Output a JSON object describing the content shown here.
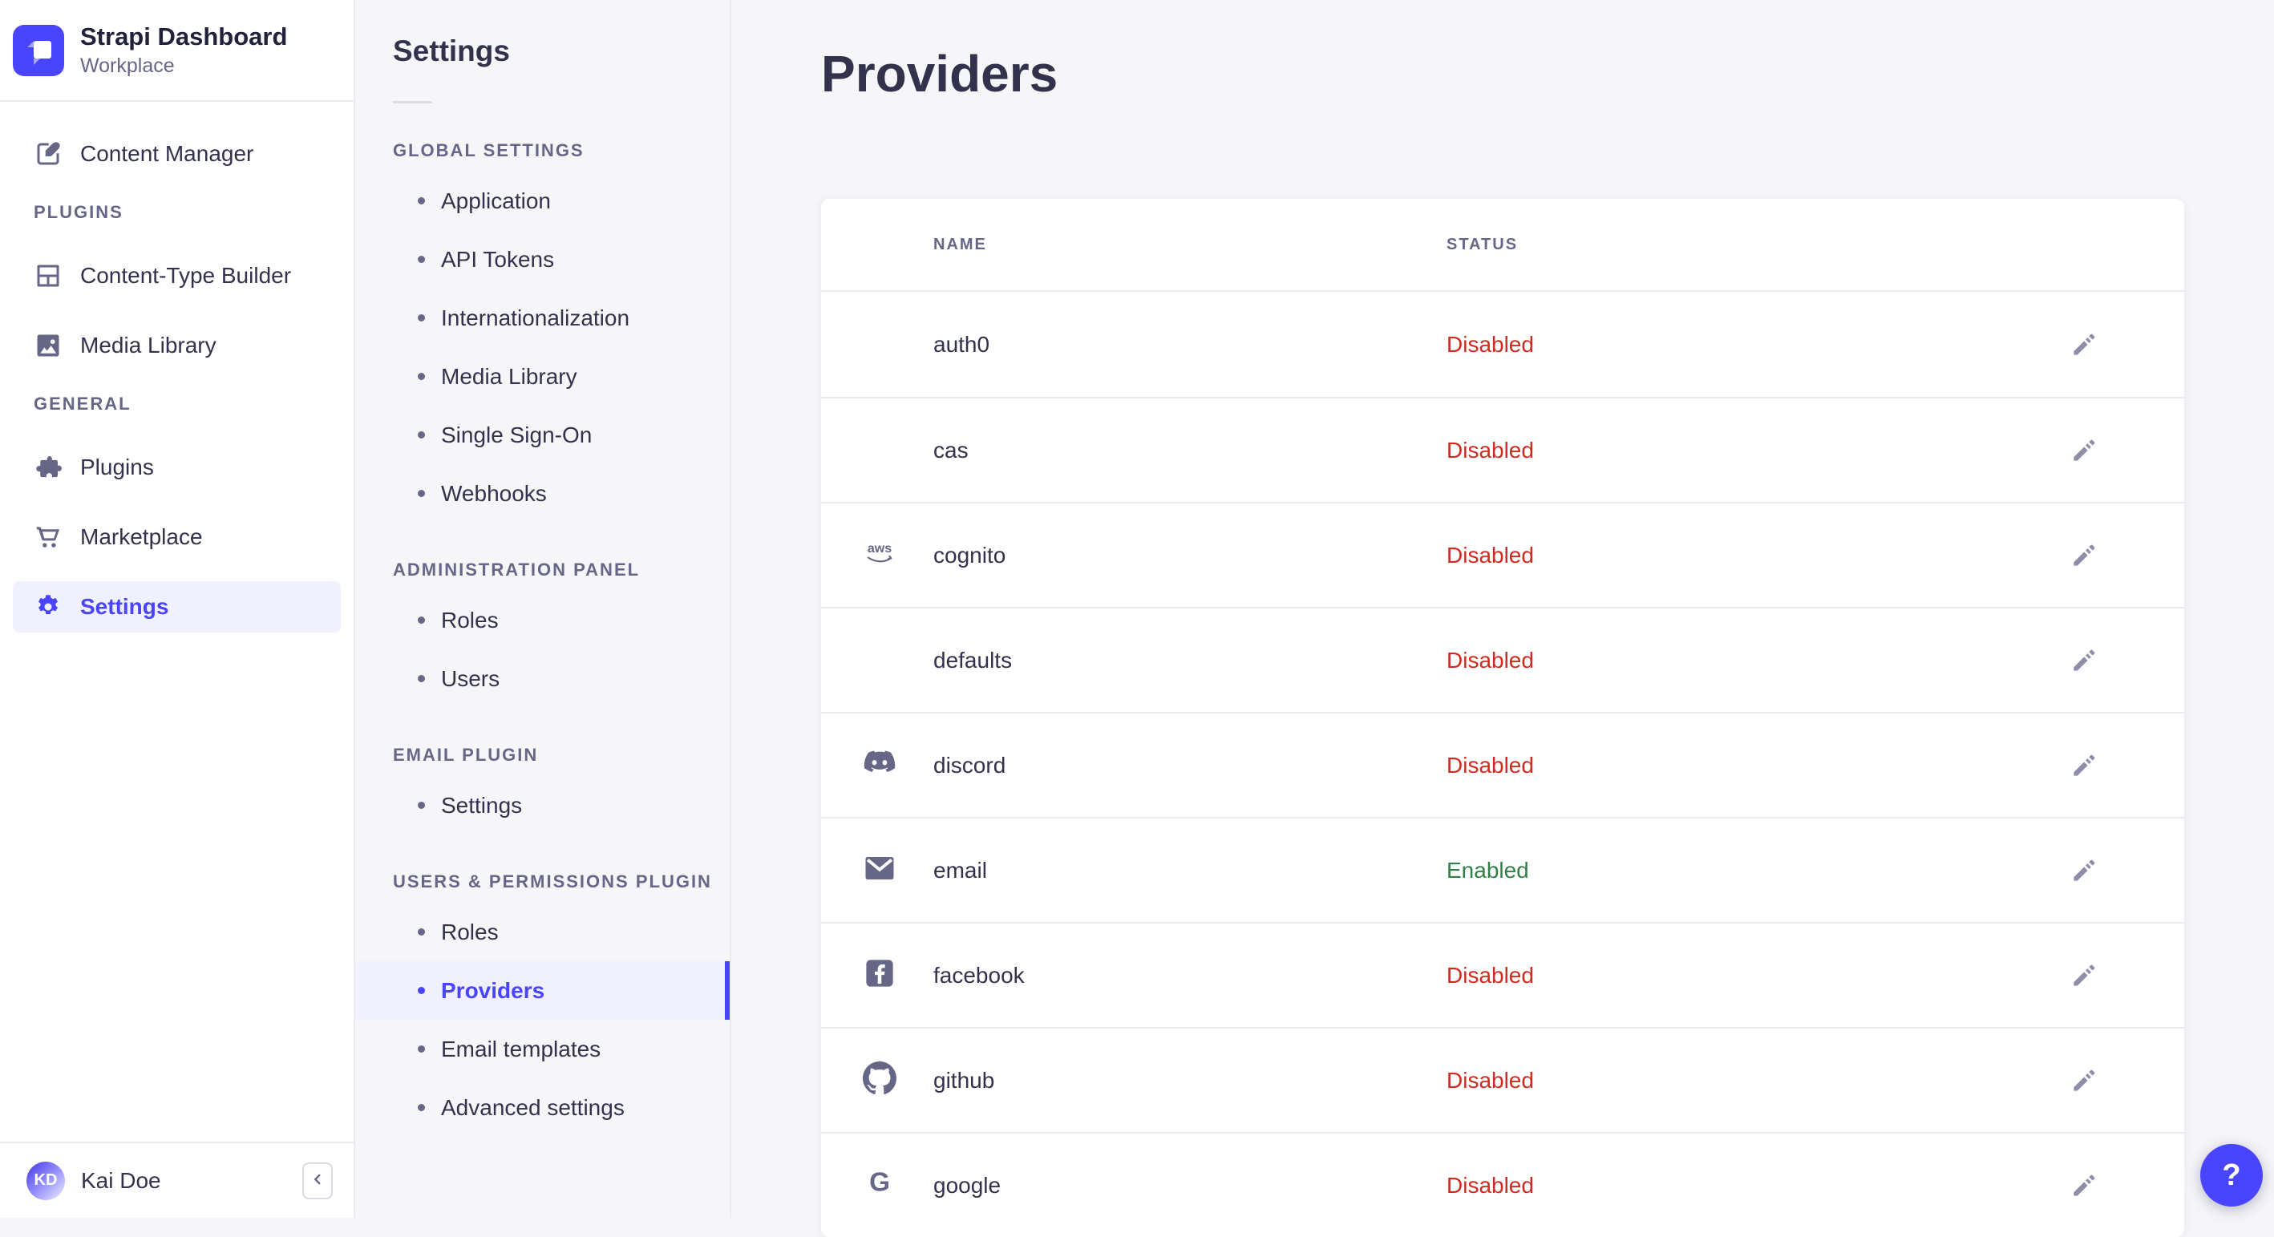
{
  "brand": {
    "title": "Strapi Dashboard",
    "subtitle": "Workplace",
    "logo_icon": "strapi-logo-icon"
  },
  "sidebar": {
    "items_top": [
      {
        "label": "Content Manager",
        "icon": "content-manager-icon"
      }
    ],
    "sections": [
      {
        "label": "PLUGINS",
        "items": [
          {
            "label": "Content-Type Builder",
            "icon": "content-type-builder-icon"
          },
          {
            "label": "Media Library",
            "icon": "media-library-icon"
          }
        ]
      },
      {
        "label": "GENERAL",
        "items": [
          {
            "label": "Plugins",
            "icon": "plugins-icon"
          },
          {
            "label": "Marketplace",
            "icon": "marketplace-icon"
          },
          {
            "label": "Settings",
            "icon": "settings-gear-icon",
            "active": true
          }
        ]
      }
    ],
    "user": {
      "initials": "KD",
      "name": "Kai Doe"
    },
    "collapse_icon": "chevron-left-icon"
  },
  "settings_nav": {
    "title": "Settings",
    "sections": [
      {
        "label": "GLOBAL SETTINGS",
        "items": [
          "Application",
          "API Tokens",
          "Internationalization",
          "Media Library",
          "Single Sign-On",
          "Webhooks"
        ]
      },
      {
        "label": "ADMINISTRATION PANEL",
        "items": [
          "Roles",
          "Users"
        ]
      },
      {
        "label": "EMAIL PLUGIN",
        "items": [
          "Settings"
        ]
      },
      {
        "label": "USERS & PERMISSIONS PLUGIN",
        "items": [
          "Roles",
          "Providers",
          "Email templates",
          "Advanced settings"
        ],
        "active_item": "Providers"
      }
    ]
  },
  "main": {
    "title": "Providers",
    "table": {
      "columns": [
        "NAME",
        "STATUS"
      ],
      "rows": [
        {
          "name": "auth0",
          "status": "Disabled",
          "icon": null
        },
        {
          "name": "cas",
          "status": "Disabled",
          "icon": null
        },
        {
          "name": "cognito",
          "status": "Disabled",
          "icon": "aws-icon"
        },
        {
          "name": "defaults",
          "status": "Disabled",
          "icon": null
        },
        {
          "name": "discord",
          "status": "Disabled",
          "icon": "discord-icon"
        },
        {
          "name": "email",
          "status": "Enabled",
          "icon": "email-icon"
        },
        {
          "name": "facebook",
          "status": "Disabled",
          "icon": "facebook-icon"
        },
        {
          "name": "github",
          "status": "Disabled",
          "icon": "github-icon"
        },
        {
          "name": "google",
          "status": "Disabled",
          "icon": "google-icon"
        }
      ],
      "edit_icon": "edit-pencil-icon"
    }
  },
  "help": {
    "label": "?"
  },
  "colors": {
    "primary": "#4945ff",
    "primary_bg": "#f0f0ff",
    "page_bg": "#f6f6f9",
    "text": "#32324d",
    "muted": "#666687",
    "border": "#eaeaef",
    "status_disabled": "#d02b20",
    "status_enabled": "#328048"
  }
}
